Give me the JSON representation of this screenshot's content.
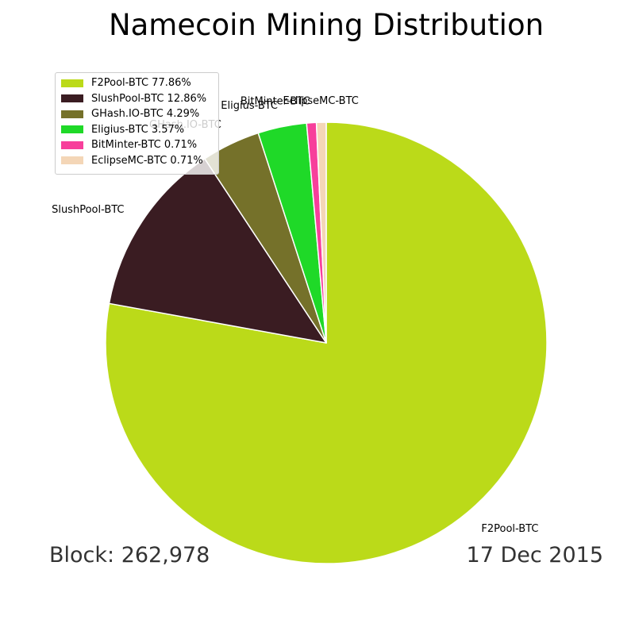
{
  "chart_data": {
    "type": "pie",
    "title": "Namecoin Mining Distribution",
    "categories": [
      "F2Pool-BTC",
      "SlushPool-BTC",
      "GHash.IO-BTC",
      "Eligius-BTC",
      "BitMinter-BTC",
      "EclipseMC-BTC"
    ],
    "values": [
      77.86,
      12.86,
      4.29,
      3.57,
      0.71,
      0.71
    ],
    "colors": [
      "#bbda19",
      "#3a1c22",
      "#75712a",
      "#1fd928",
      "#f73f9b",
      "#f4d6b7"
    ],
    "legend_labels": [
      "F2Pool-BTC 77.86%",
      "SlushPool-BTC 12.86%",
      "GHash.IO-BTC 4.29%",
      "Eligius-BTC 3.57%",
      "BitMinter-BTC 0.71%",
      "EclipseMC-BTC 0.71%"
    ],
    "legend_position": "upper-left",
    "start_angle": "top, clockwise"
  },
  "footer": {
    "block": "Block: 262,978",
    "date": "17 Dec 2015"
  }
}
